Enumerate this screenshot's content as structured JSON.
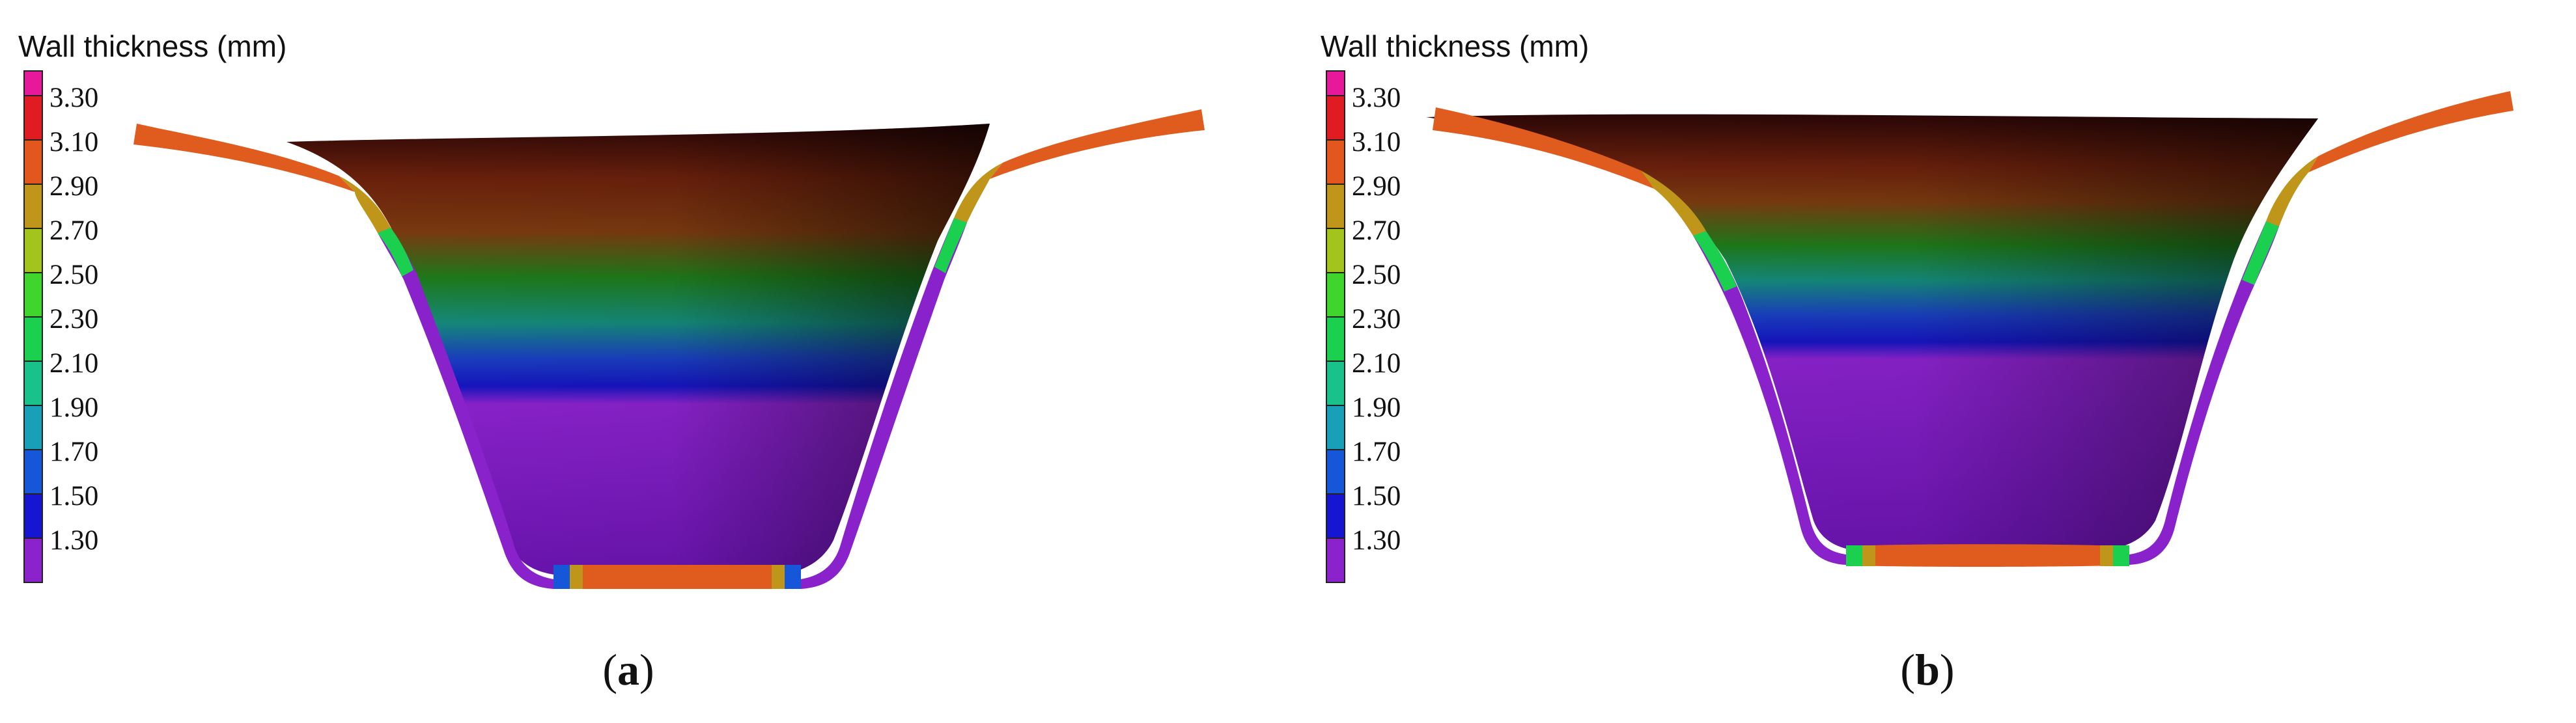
{
  "legend": {
    "title": "Wall thickness (mm)",
    "ticks": [
      "3.30",
      "3.10",
      "2.90",
      "2.70",
      "2.50",
      "2.30",
      "2.10",
      "1.90",
      "1.70",
      "1.50",
      "1.30"
    ],
    "colors": [
      "#e8189a",
      "#e11b22",
      "#e3571f",
      "#c0961a",
      "#a2c41c",
      "#3fd52c",
      "#1ad04e",
      "#19c28a",
      "#18a0b9",
      "#1656d8",
      "#1515d2",
      "#8b22cc"
    ]
  },
  "panels": [
    {
      "id": "a",
      "caption_open": "(",
      "caption_letter": "a",
      "caption_close": ")"
    },
    {
      "id": "b",
      "caption_open": "(",
      "caption_letter": "b",
      "caption_close": ")"
    }
  ],
  "palette": {
    "flange": "#e05c1e",
    "wall": "#8a22cc",
    "cup_dark": "#3a0a0e",
    "cup_brown": "#7a2a10"
  }
}
